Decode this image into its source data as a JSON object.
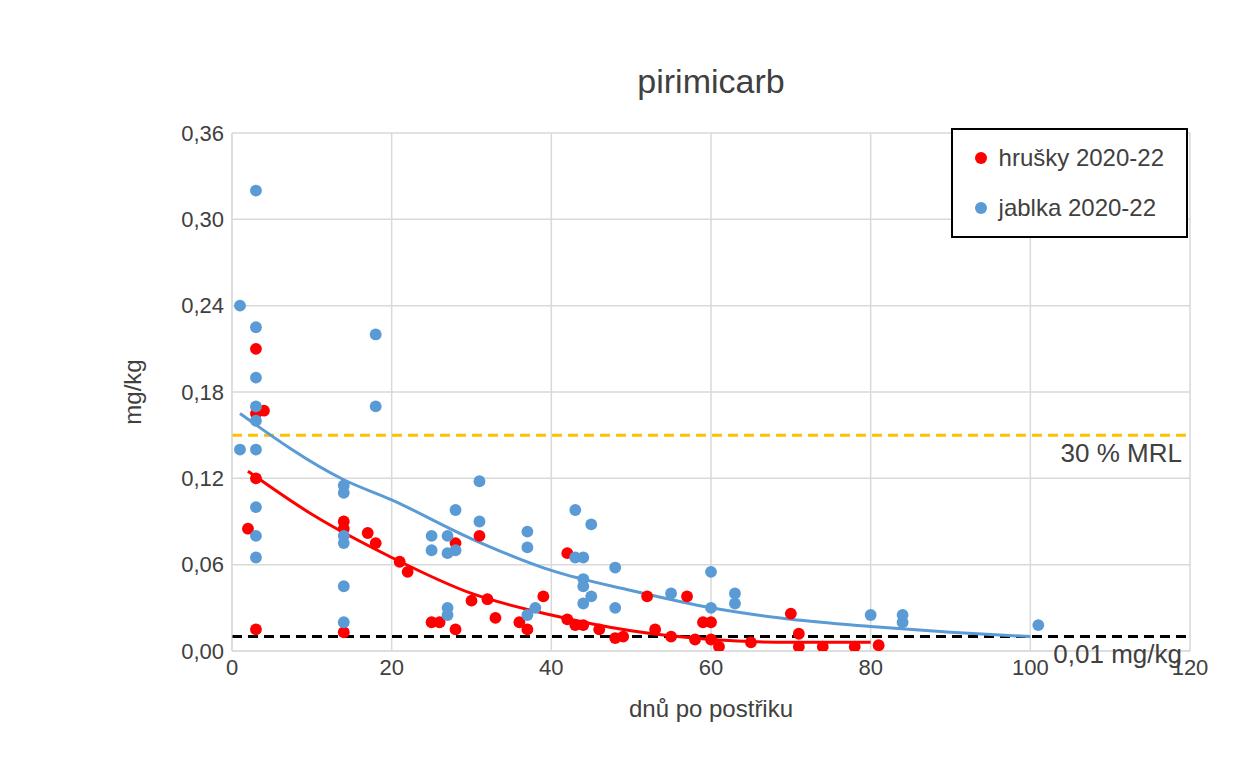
{
  "chart_data": {
    "type": "scatter",
    "title": "pirimicarb",
    "x_label": "dnů po postřiku",
    "y_label": "mg/kg",
    "xlim": [
      0,
      120
    ],
    "xticks": [
      0,
      20,
      40,
      60,
      80,
      100,
      120
    ],
    "ylim": [
      0,
      0.36
    ],
    "yticks": [
      {
        "value": 0,
        "label": "0,00"
      },
      {
        "value": 0.06,
        "label": "0,06"
      },
      {
        "value": 0.12,
        "label": "0,12"
      },
      {
        "value": 0.18,
        "label": "0,18"
      },
      {
        "value": 0.24,
        "label": "0,24"
      },
      {
        "value": 0.3,
        "label": "0,30"
      },
      {
        "value": 0.36,
        "label": "0,36"
      }
    ],
    "grid": true,
    "legend": "top-right",
    "annotations": [
      {
        "label": "30 % MRL",
        "y": 0.15,
        "color": "#ffc000",
        "line_style": "dashed"
      },
      {
        "label": "0,01 mg/kg",
        "y": 0.01,
        "color": "#000000",
        "line_style": "dashed"
      }
    ],
    "series": [
      {
        "name": "hrušky 2020-22",
        "color": "#ff0000",
        "marker": "circle",
        "x": [
          2,
          3,
          3,
          4,
          3,
          3,
          14,
          14,
          14,
          17,
          18,
          21,
          22,
          25,
          26,
          28,
          28,
          30,
          31,
          32,
          33,
          36,
          37,
          39,
          42,
          42,
          43,
          44,
          46,
          48,
          49,
          52,
          53,
          55,
          57,
          58,
          59,
          60,
          60,
          61,
          65,
          70,
          71,
          71,
          74,
          78,
          81
        ],
        "values": [
          0.085,
          0.21,
          0.165,
          0.167,
          0.12,
          0.015,
          0.09,
          0.085,
          0.013,
          0.082,
          0.075,
          0.062,
          0.055,
          0.02,
          0.02,
          0.075,
          0.015,
          0.035,
          0.08,
          0.036,
          0.023,
          0.02,
          0.015,
          0.038,
          0.068,
          0.022,
          0.018,
          0.018,
          0.015,
          0.009,
          0.01,
          0.038,
          0.015,
          0.01,
          0.038,
          0.008,
          0.02,
          0.02,
          0.008,
          0.003,
          0.006,
          0.026,
          0.012,
          0.003,
          0.003,
          0.003,
          0.004
        ],
        "trend": {
          "type": "line",
          "line_style": "solid",
          "x": [
            2,
            10,
            20,
            30,
            40,
            50,
            60,
            70,
            80
          ],
          "values": [
            0.125,
            0.095,
            0.065,
            0.04,
            0.025,
            0.014,
            0.008,
            0.006,
            0.006
          ]
        }
      },
      {
        "name": "jablka 2020-22",
        "color": "#5b9bd5",
        "marker": "circle",
        "x": [
          1,
          1,
          3,
          3,
          3,
          3,
          3,
          3,
          3,
          3,
          3,
          14,
          14,
          14,
          14,
          14,
          14,
          18,
          18,
          25,
          25,
          27,
          27,
          27,
          28,
          28,
          27,
          31,
          31,
          37,
          37,
          37,
          38,
          43,
          43,
          44,
          44,
          44,
          44,
          45,
          45,
          48,
          48,
          55,
          60,
          60,
          63,
          63,
          80,
          84,
          84,
          101
        ],
        "values": [
          0.24,
          0.14,
          0.32,
          0.225,
          0.19,
          0.17,
          0.16,
          0.14,
          0.1,
          0.08,
          0.065,
          0.115,
          0.11,
          0.08,
          0.075,
          0.045,
          0.02,
          0.22,
          0.17,
          0.08,
          0.07,
          0.08,
          0.03,
          0.025,
          0.098,
          0.07,
          0.068,
          0.118,
          0.09,
          0.083,
          0.072,
          0.025,
          0.03,
          0.098,
          0.065,
          0.065,
          0.05,
          0.045,
          0.033,
          0.088,
          0.038,
          0.058,
          0.03,
          0.04,
          0.055,
          0.03,
          0.04,
          0.033,
          0.025,
          0.025,
          0.02,
          0.018
        ],
        "trend": {
          "type": "line",
          "line_style": "solid",
          "x": [
            1,
            14,
            20,
            30,
            40,
            50,
            60,
            70,
            80,
            90,
            100
          ],
          "values": [
            0.165,
            0.119,
            0.105,
            0.078,
            0.056,
            0.042,
            0.03,
            0.022,
            0.017,
            0.013,
            0.01
          ]
        }
      }
    ]
  }
}
